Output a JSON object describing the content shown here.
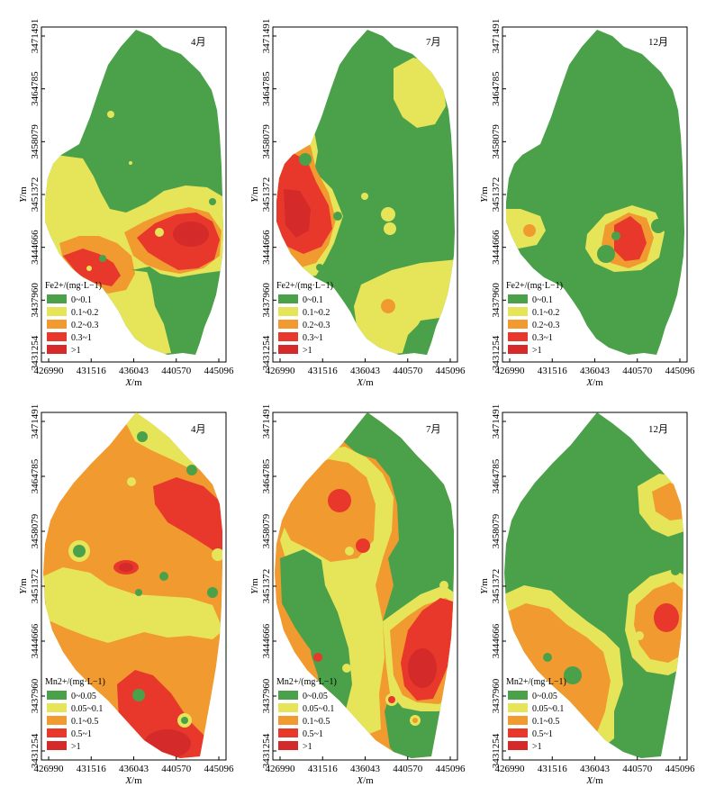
{
  "colors": {
    "green": "#4aa14a",
    "yellow": "#e6e55a",
    "orange": "#f19a30",
    "red": "#e8382c",
    "darkred": "#d42a2a"
  },
  "axes": {
    "y_ticks": [
      "3471491",
      "3464785",
      "3458079",
      "3451372",
      "3444666",
      "3437960",
      "3431254"
    ],
    "x_ticks": [
      "426990",
      "431516",
      "436043",
      "440570",
      "445096"
    ],
    "x_label_var": "X",
    "x_label_unit": "/m",
    "y_label_var": "Y",
    "y_label_unit": "/m"
  },
  "legends": {
    "fe": {
      "title": "Fe2+/(mg·L−1)",
      "items": [
        "0~0.1",
        "0.1~0.2",
        "0.2~0.3",
        "0.3~1",
        ">1"
      ]
    },
    "mn": {
      "title": "Mn2+/(mg·L−1)",
      "items": [
        "0~0.05",
        "0.05~0.1",
        "0.1~0.5",
        "0.5~1",
        ">1"
      ]
    }
  },
  "panels": [
    {
      "id": "fe-apr",
      "month": "4月",
      "legend": "fe"
    },
    {
      "id": "fe-jul",
      "month": "7月",
      "legend": "fe"
    },
    {
      "id": "fe-dec",
      "month": "12月",
      "legend": "fe"
    },
    {
      "id": "mn-apr",
      "month": "4月",
      "legend": "mn"
    },
    {
      "id": "mn-jul",
      "month": "7月",
      "legend": "mn"
    },
    {
      "id": "mn-dec",
      "month": "12月",
      "legend": "mn"
    }
  ]
}
